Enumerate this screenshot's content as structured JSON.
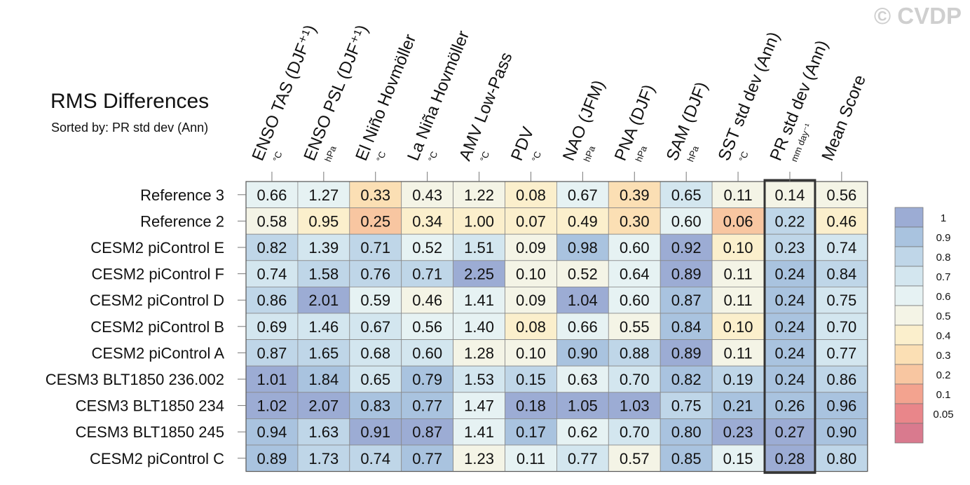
{
  "watermark": "© CVDP",
  "header": {
    "title": "RMS Differences",
    "subtitle": "Sorted by: PR std dev (Ann)"
  },
  "chart_data": {
    "type": "heatmap",
    "title": "RMS Differences",
    "subtitle": "Sorted by: PR std dev (Ann)",
    "columns": [
      {
        "label": "ENSO TAS (DJF⁺¹)",
        "unit": "°C"
      },
      {
        "label": "ENSO PSL (DJF⁺¹)",
        "unit": "hPa"
      },
      {
        "label": "El Niño Hovmöller",
        "unit": "°C"
      },
      {
        "label": "La Niña Hovmöller",
        "unit": "°C"
      },
      {
        "label": "AMV Low-Pass",
        "unit": "°C"
      },
      {
        "label": "PDV",
        "unit": "°C"
      },
      {
        "label": "NAO (JFM)",
        "unit": "hPa"
      },
      {
        "label": "PNA (DJF)",
        "unit": "hPa"
      },
      {
        "label": "SAM (DJF)",
        "unit": "hPa"
      },
      {
        "label": "SST std dev (Ann)",
        "unit": "°C"
      },
      {
        "label": "PR std dev (Ann)",
        "unit": "mm day⁻¹"
      },
      {
        "label": "Mean Score",
        "unit": ""
      }
    ],
    "highlighted_column": "PR std dev (Ann)",
    "rows": [
      {
        "name": "Reference 3",
        "values": [
          0.66,
          1.27,
          0.33,
          0.43,
          1.22,
          0.08,
          0.67,
          0.39,
          0.65,
          0.11,
          0.14,
          0.56
        ]
      },
      {
        "name": "Reference 2",
        "values": [
          0.58,
          0.95,
          0.25,
          0.34,
          1.0,
          0.07,
          0.49,
          0.3,
          0.6,
          0.06,
          0.22,
          0.46
        ]
      },
      {
        "name": "CESM2 piControl E",
        "values": [
          0.82,
          1.39,
          0.71,
          0.52,
          1.51,
          0.09,
          0.98,
          0.6,
          0.92,
          0.1,
          0.23,
          0.74
        ]
      },
      {
        "name": "CESM2 piControl F",
        "values": [
          0.74,
          1.58,
          0.76,
          0.71,
          2.25,
          0.1,
          0.52,
          0.64,
          0.89,
          0.11,
          0.24,
          0.84
        ]
      },
      {
        "name": "CESM2 piControl D",
        "values": [
          0.86,
          2.01,
          0.59,
          0.46,
          1.41,
          0.09,
          1.04,
          0.6,
          0.87,
          0.11,
          0.24,
          0.75
        ]
      },
      {
        "name": "CESM2 piControl B",
        "values": [
          0.69,
          1.46,
          0.67,
          0.56,
          1.4,
          0.08,
          0.66,
          0.55,
          0.84,
          0.1,
          0.24,
          0.7
        ]
      },
      {
        "name": "CESM2 piControl A",
        "values": [
          0.87,
          1.65,
          0.68,
          0.6,
          1.28,
          0.1,
          0.9,
          0.88,
          0.89,
          0.11,
          0.24,
          0.77
        ]
      },
      {
        "name": "CESM3 BLT1850 236.002",
        "values": [
          1.01,
          1.84,
          0.65,
          0.79,
          1.53,
          0.15,
          0.63,
          0.7,
          0.82,
          0.19,
          0.24,
          0.86
        ]
      },
      {
        "name": "CESM3 BLT1850 234",
        "values": [
          1.02,
          2.07,
          0.83,
          0.77,
          1.47,
          0.18,
          1.05,
          1.03,
          0.75,
          0.21,
          0.26,
          0.96
        ]
      },
      {
        "name": "CESM3 BLT1850 245",
        "values": [
          0.94,
          1.63,
          0.91,
          0.87,
          1.41,
          0.17,
          0.62,
          0.7,
          0.8,
          0.23,
          0.27,
          0.9
        ]
      },
      {
        "name": "CESM2 piControl C",
        "values": [
          0.89,
          1.73,
          0.74,
          0.77,
          1.23,
          0.11,
          0.77,
          0.57,
          0.85,
          0.15,
          0.28,
          0.8
        ]
      }
    ],
    "colorbar": {
      "ticks": [
        "1",
        "0.9",
        "0.8",
        "0.7",
        "0.6",
        "0.5",
        "0.4",
        "0.3",
        "0.2",
        "0.1",
        "0.05"
      ],
      "levels": [
        1.0,
        0.9,
        0.8,
        0.7,
        0.6,
        0.5,
        0.4,
        0.3,
        0.2,
        0.1,
        0.05
      ],
      "colors": [
        "#9cacd4",
        "#a9c3df",
        "#bfd6e8",
        "#d3e6ef",
        "#e6f2f3",
        "#f4f4e6",
        "#fbefcc",
        "#fbdfb4",
        "#f8c6a1",
        "#f3a38f",
        "#e9868a",
        "#d97a8e"
      ]
    }
  }
}
